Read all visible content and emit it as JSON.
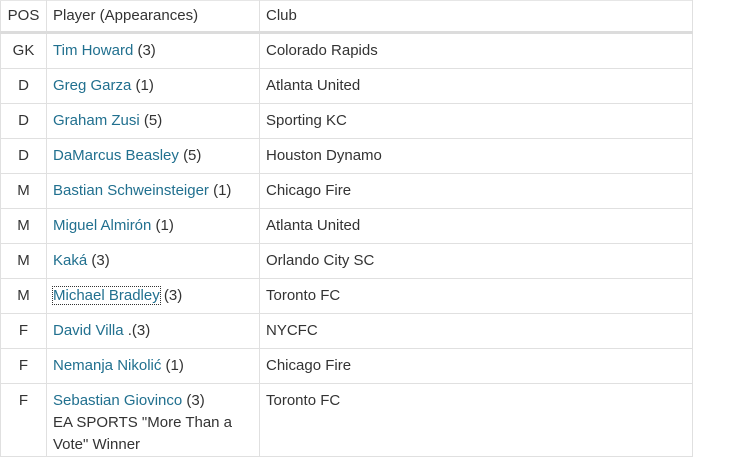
{
  "table": {
    "headers": [
      "POS",
      "Player (Appearances)",
      "Club"
    ],
    "rows": [
      {
        "pos": "GK",
        "player": "Tim Howard",
        "appearances": "(3)",
        "club": "Colorado Rapids"
      },
      {
        "pos": "D",
        "player": "Greg Garza",
        "appearances": "(1)",
        "club": "Atlanta United"
      },
      {
        "pos": "D",
        "player": "Graham Zusi",
        "appearances": "(5)",
        "club": "Sporting KC"
      },
      {
        "pos": "D",
        "player": "DaMarcus Beasley",
        "appearances": "(5)",
        "club": "Houston Dynamo"
      },
      {
        "pos": "M",
        "player": "Bastian Schweinsteiger",
        "appearances": "(1)",
        "club": "Chicago Fire"
      },
      {
        "pos": "M",
        "player": "Miguel Almirón",
        "appearances": "(1)",
        "club": "Atlanta United"
      },
      {
        "pos": "M",
        "player": "Kaká",
        "appearances": "(3)",
        "club": "Orlando City SC"
      },
      {
        "pos": "M",
        "player": "Michael Bradley",
        "appearances": "(3)",
        "club": "Toronto FC"
      },
      {
        "pos": "F",
        "player": "David Villa",
        "appearances": ".(3)",
        "club": "NYCFC"
      },
      {
        "pos": "F",
        "player": "Nemanja Nikolić",
        "appearances": "(1)",
        "club": "Chicago Fire"
      },
      {
        "pos": "F",
        "player": "Sebastian Giovinco",
        "appearances": "(3)",
        "club": "Toronto FC",
        "note": "EA SPORTS \"More Than a Vote\" Winner"
      }
    ]
  }
}
